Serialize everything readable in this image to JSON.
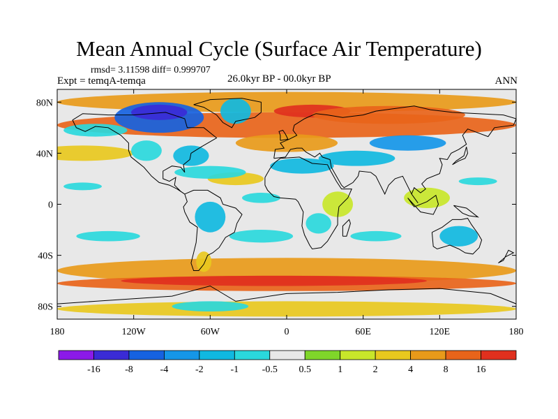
{
  "colors": {
    "bins": [
      "#8b1ae8",
      "#3a2bd6",
      "#1662e0",
      "#1596e8",
      "#10b8e0",
      "#2ad8dc",
      "#e8e8e8",
      "#7fd62a",
      "#c8e62a",
      "#e8c81e",
      "#e89a1a",
      "#e8641a",
      "#e0301e"
    ],
    "land": "#000000"
  },
  "chart_data": {
    "type": "heatmap",
    "title": "Mean Annual Cycle (Surface Air Temperature)",
    "stats": "rmsd= 3.11598 diff= 0.999707",
    "experiment": "Expt = temqA-temqa",
    "period": "26.0kyr BP - 00.0kyr BP",
    "season": "ANN",
    "x_range": [
      -180,
      180
    ],
    "y_range": [
      -90,
      90
    ],
    "x_ticks": [
      {
        "value": -180,
        "label": "180"
      },
      {
        "value": -120,
        "label": "120W"
      },
      {
        "value": -60,
        "label": "60W"
      },
      {
        "value": 0,
        "label": "0"
      },
      {
        "value": 60,
        "label": "60E"
      },
      {
        "value": 120,
        "label": "120E"
      },
      {
        "value": 180,
        "label": "180"
      }
    ],
    "y_ticks": [
      {
        "value": 80,
        "label": "80N"
      },
      {
        "value": 40,
        "label": "40N"
      },
      {
        "value": 0,
        "label": "0"
      },
      {
        "value": -40,
        "label": "40S"
      },
      {
        "value": -80,
        "label": "80S"
      }
    ],
    "colorbar_labels": [
      "-16",
      "-8",
      "-4",
      "-2",
      "-1",
      "-0.5",
      "0.5",
      "1",
      "2",
      "4",
      "8",
      "16"
    ]
  }
}
